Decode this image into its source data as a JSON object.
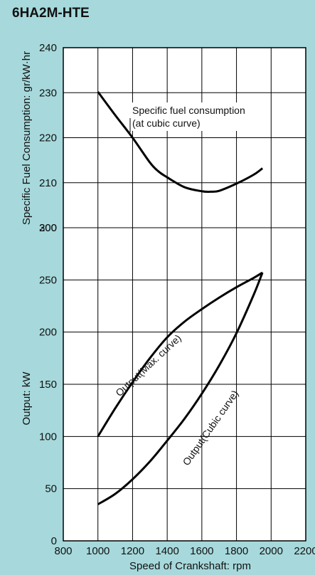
{
  "title": "6HA2M-HTE",
  "chart_data": {
    "type": "line",
    "xlabel": "Speed of Crankshaft: rpm",
    "x_ticks": [
      800,
      1000,
      1200,
      1400,
      1600,
      1800,
      2000,
      2200
    ],
    "xlim": [
      800,
      2200
    ],
    "top_panel": {
      "ylabel": "Specific Fuel Consumption: gr/kW·hr",
      "y_ticks": [
        200,
        210,
        220,
        230,
        240
      ],
      "ylim": [
        200,
        240
      ],
      "series": [
        {
          "label": "Specific fuel consumption\n(at cubic curve)",
          "x": [
            1000,
            1100,
            1200,
            1300,
            1350,
            1400,
            1500,
            1600,
            1650,
            1700,
            1800,
            1900,
            1950
          ],
          "y": [
            230.2,
            225.0,
            220.0,
            214.5,
            212.5,
            211.2,
            209.0,
            208.1,
            208.0,
            208.2,
            209.8,
            211.8,
            213.2
          ]
        }
      ]
    },
    "bottom_panel": {
      "ylabel": "Output: kW",
      "y_ticks": [
        0,
        50,
        100,
        150,
        200,
        250,
        300
      ],
      "ylim": [
        0,
        300
      ],
      "series": [
        {
          "label": "Output(Max. curve)",
          "x": [
            1000,
            1100,
            1200,
            1300,
            1400,
            1500,
            1600,
            1700,
            1800,
            1900,
            1950
          ],
          "y": [
            100,
            127,
            152,
            175,
            195,
            210,
            222,
            233,
            243,
            252,
            257
          ]
        },
        {
          "label": "Output(Cubic curve)",
          "x": [
            1000,
            1100,
            1200,
            1300,
            1400,
            1500,
            1600,
            1700,
            1800,
            1900,
            1950
          ],
          "y": [
            35,
            45,
            59,
            76,
            96,
            117,
            141,
            168,
            199,
            236,
            257
          ]
        }
      ]
    }
  }
}
